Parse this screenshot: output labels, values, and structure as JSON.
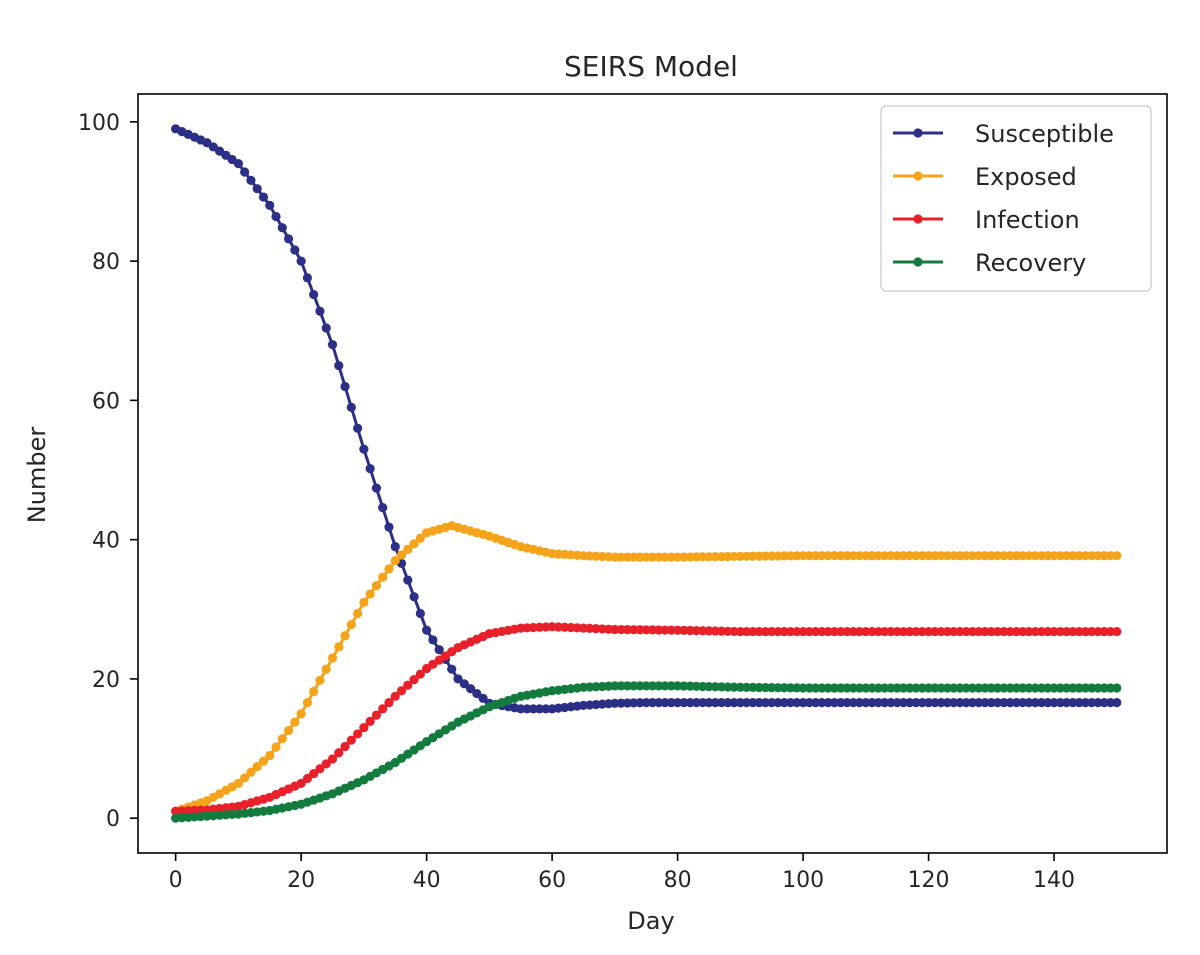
{
  "chart_data": {
    "type": "line",
    "title": "SEIRS Model",
    "xlabel": "Day",
    "ylabel": "Number",
    "xlim": [
      -6,
      158
    ],
    "ylim": [
      -5,
      104
    ],
    "xticks": [
      0,
      20,
      40,
      60,
      80,
      100,
      120,
      140
    ],
    "yticks": [
      0,
      20,
      40,
      60,
      80,
      100
    ],
    "grid": false,
    "legend": "top-right",
    "marker": "dot",
    "x_range": [
      0,
      150
    ],
    "series": [
      {
        "name": "Susceptible",
        "color": "#2b2f86",
        "points": [
          [
            0,
            99
          ],
          [
            5,
            97
          ],
          [
            10,
            94
          ],
          [
            15,
            88
          ],
          [
            20,
            80
          ],
          [
            25,
            68
          ],
          [
            30,
            53
          ],
          [
            35,
            39
          ],
          [
            40,
            27
          ],
          [
            45,
            20
          ],
          [
            50,
            16.5
          ],
          [
            55,
            15.7
          ],
          [
            60,
            15.7
          ],
          [
            65,
            16.2
          ],
          [
            70,
            16.5
          ],
          [
            75,
            16.6
          ],
          [
            80,
            16.6
          ],
          [
            90,
            16.6
          ],
          [
            100,
            16.6
          ],
          [
            150,
            16.6
          ]
        ]
      },
      {
        "name": "Exposed",
        "color": "#f5a31a",
        "points": [
          [
            0,
            1
          ],
          [
            5,
            2.5
          ],
          [
            10,
            5
          ],
          [
            15,
            9
          ],
          [
            20,
            15
          ],
          [
            25,
            23
          ],
          [
            30,
            31
          ],
          [
            35,
            37
          ],
          [
            40,
            41
          ],
          [
            44,
            42
          ],
          [
            50,
            40.5
          ],
          [
            55,
            39
          ],
          [
            60,
            38
          ],
          [
            65,
            37.7
          ],
          [
            70,
            37.5
          ],
          [
            80,
            37.5
          ],
          [
            90,
            37.6
          ],
          [
            100,
            37.7
          ],
          [
            150,
            37.7
          ]
        ]
      },
      {
        "name": "Infection",
        "color": "#e8202a",
        "points": [
          [
            0,
            1
          ],
          [
            5,
            1.2
          ],
          [
            10,
            1.7
          ],
          [
            15,
            3
          ],
          [
            20,
            5
          ],
          [
            25,
            8.5
          ],
          [
            30,
            13
          ],
          [
            35,
            17.5
          ],
          [
            40,
            21.5
          ],
          [
            45,
            24.5
          ],
          [
            50,
            26.5
          ],
          [
            55,
            27.3
          ],
          [
            60,
            27.5
          ],
          [
            65,
            27.3
          ],
          [
            70,
            27.1
          ],
          [
            80,
            27
          ],
          [
            90,
            26.8
          ],
          [
            150,
            26.8
          ]
        ]
      },
      {
        "name": "Recovery",
        "color": "#137b3e",
        "points": [
          [
            0,
            0
          ],
          [
            5,
            0.3
          ],
          [
            10,
            0.6
          ],
          [
            15,
            1.1
          ],
          [
            20,
            2
          ],
          [
            25,
            3.5
          ],
          [
            30,
            5.5
          ],
          [
            35,
            8
          ],
          [
            40,
            11
          ],
          [
            45,
            13.8
          ],
          [
            50,
            16
          ],
          [
            55,
            17.5
          ],
          [
            60,
            18.3
          ],
          [
            65,
            18.8
          ],
          [
            70,
            19
          ],
          [
            80,
            19
          ],
          [
            90,
            18.8
          ],
          [
            100,
            18.7
          ],
          [
            150,
            18.7
          ]
        ]
      }
    ]
  }
}
